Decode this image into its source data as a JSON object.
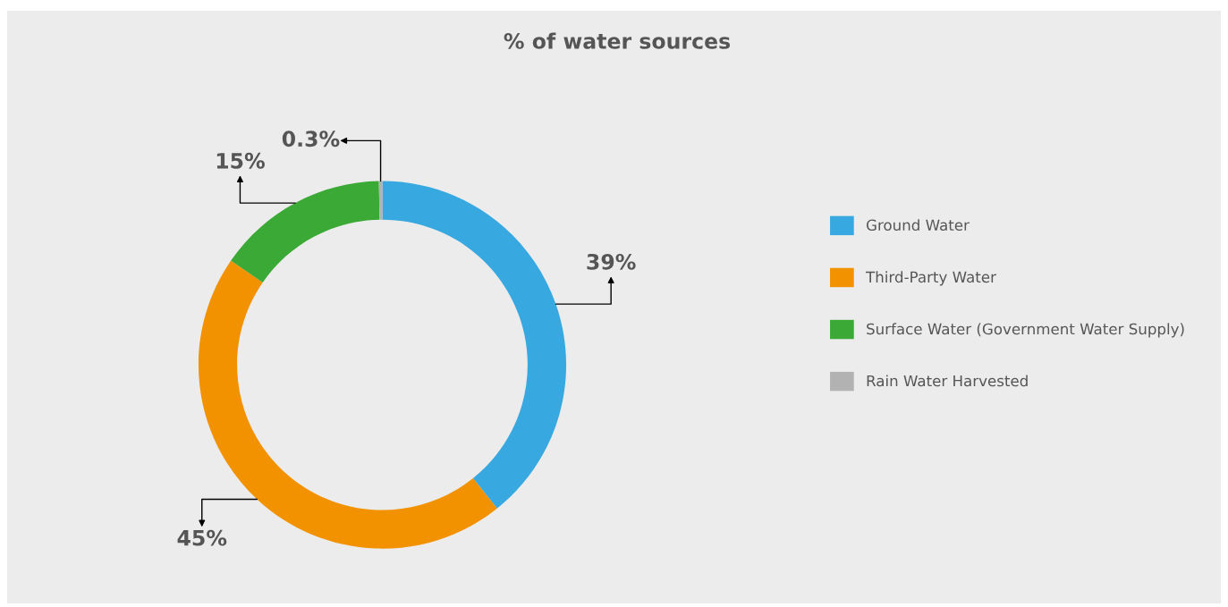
{
  "chart_data": {
    "type": "donut",
    "title": "% of water sources",
    "categories": [
      "Ground Water",
      "Third-Party Water",
      "Surface Water (Government Water Supply)",
      "Rain Water Harvested"
    ],
    "values": [
      39,
      45,
      15,
      0.3
    ],
    "colors": [
      "#38a9e0",
      "#f29200",
      "#3aa935",
      "#b2b2b2"
    ],
    "value_labels": [
      "39%",
      "45%",
      "15%",
      "0.3%"
    ],
    "legend": "right"
  }
}
